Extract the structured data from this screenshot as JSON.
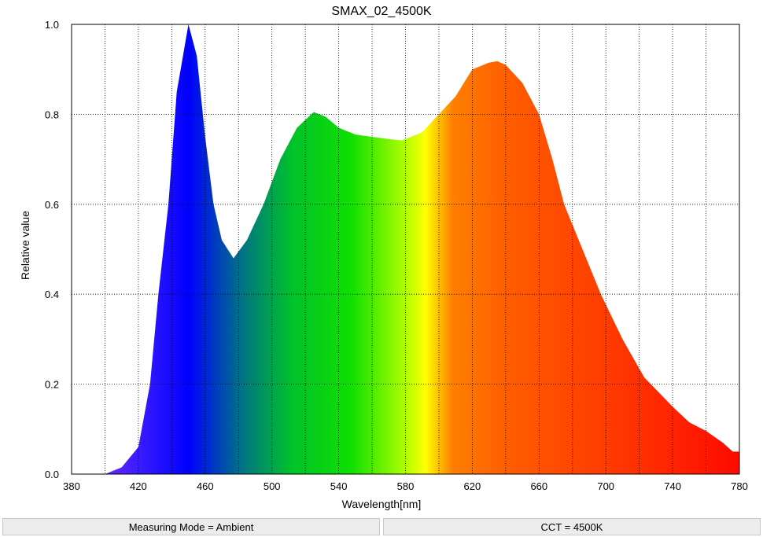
{
  "chart_data": {
    "type": "area",
    "title": "SMAX_02_4500K",
    "xlabel": "Wavelength[nm]",
    "ylabel": "Relative value",
    "x": [
      380,
      390,
      400,
      410,
      420,
      427,
      432,
      438,
      443,
      450,
      455,
      460,
      465,
      470,
      477,
      485,
      495,
      505,
      515,
      525,
      532,
      540,
      550,
      560,
      570,
      578,
      590,
      600,
      610,
      620,
      630,
      635,
      640,
      650,
      660,
      668,
      675,
      686,
      697,
      710,
      723,
      740,
      750,
      760,
      770,
      776,
      780
    ],
    "y": [
      0,
      0,
      0,
      0.015,
      0.06,
      0.2,
      0.4,
      0.6,
      0.85,
      1.0,
      0.93,
      0.75,
      0.6,
      0.52,
      0.48,
      0.52,
      0.6,
      0.7,
      0.77,
      0.805,
      0.795,
      0.77,
      0.755,
      0.75,
      0.745,
      0.742,
      0.76,
      0.8,
      0.84,
      0.9,
      0.915,
      0.918,
      0.91,
      0.87,
      0.8,
      0.7,
      0.6,
      0.5,
      0.4,
      0.3,
      0.215,
      0.15,
      0.115,
      0.096,
      0.07,
      0.05,
      0.05
    ],
    "xlim": [
      380,
      780
    ],
    "xticks": [
      380,
      420,
      460,
      500,
      540,
      580,
      620,
      660,
      700,
      740,
      780
    ],
    "x_minor_grid": [
      400,
      440,
      480,
      520,
      560,
      600,
      640,
      680,
      720,
      760
    ],
    "ylim": [
      0,
      1
    ],
    "yticks": [
      {
        "value": 0,
        "label": "0.0"
      },
      0.2,
      0.4,
      0.6,
      0.8,
      {
        "value": 1,
        "label": "1.0"
      }
    ],
    "grid": true
  },
  "footer": [
    "Measuring Mode = Ambient",
    "CCT = 4500K"
  ]
}
